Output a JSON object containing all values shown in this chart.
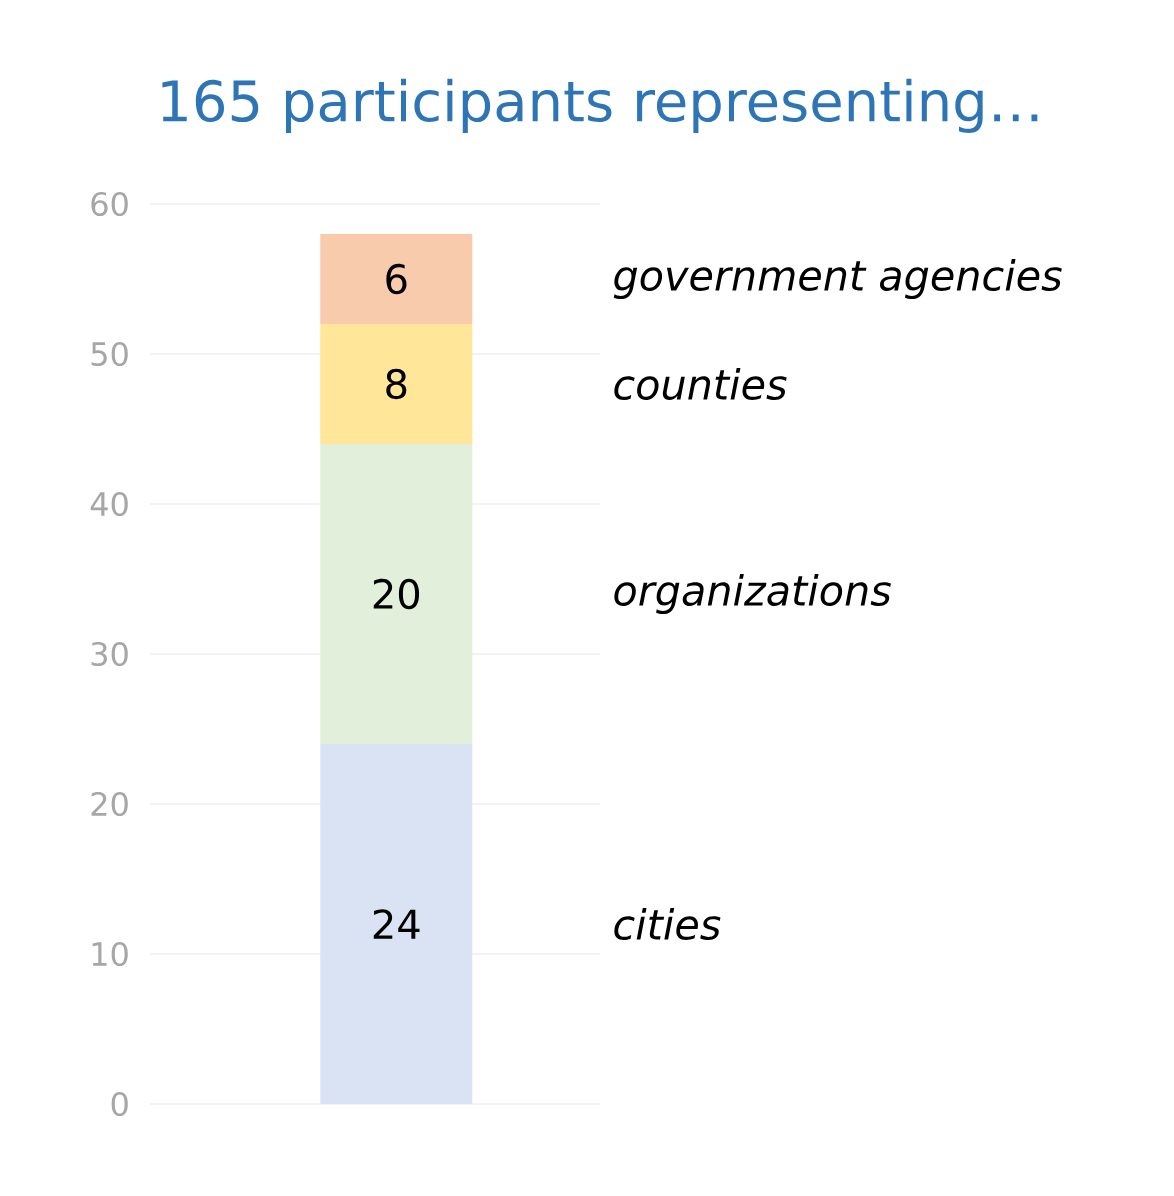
{
  "chart_data": {
    "type": "bar",
    "title": "165 participants representing…",
    "stacked": true,
    "categories": [
      null
    ],
    "series": [
      {
        "name": "cities",
        "color": "#dae3f3",
        "values": [
          24
        ]
      },
      {
        "name": "organizations",
        "color": "#e2efda",
        "values": [
          20
        ]
      },
      {
        "name": "counties",
        "color": "#ffe699",
        "values": [
          8
        ]
      },
      {
        "name": "government agencies",
        "color": "#f8cbad",
        "values": [
          6
        ]
      }
    ],
    "ylim": [
      0,
      60
    ],
    "yticks": [
      0,
      10,
      20,
      30,
      40,
      50,
      60
    ],
    "grid": "y",
    "data_labels": true
  }
}
